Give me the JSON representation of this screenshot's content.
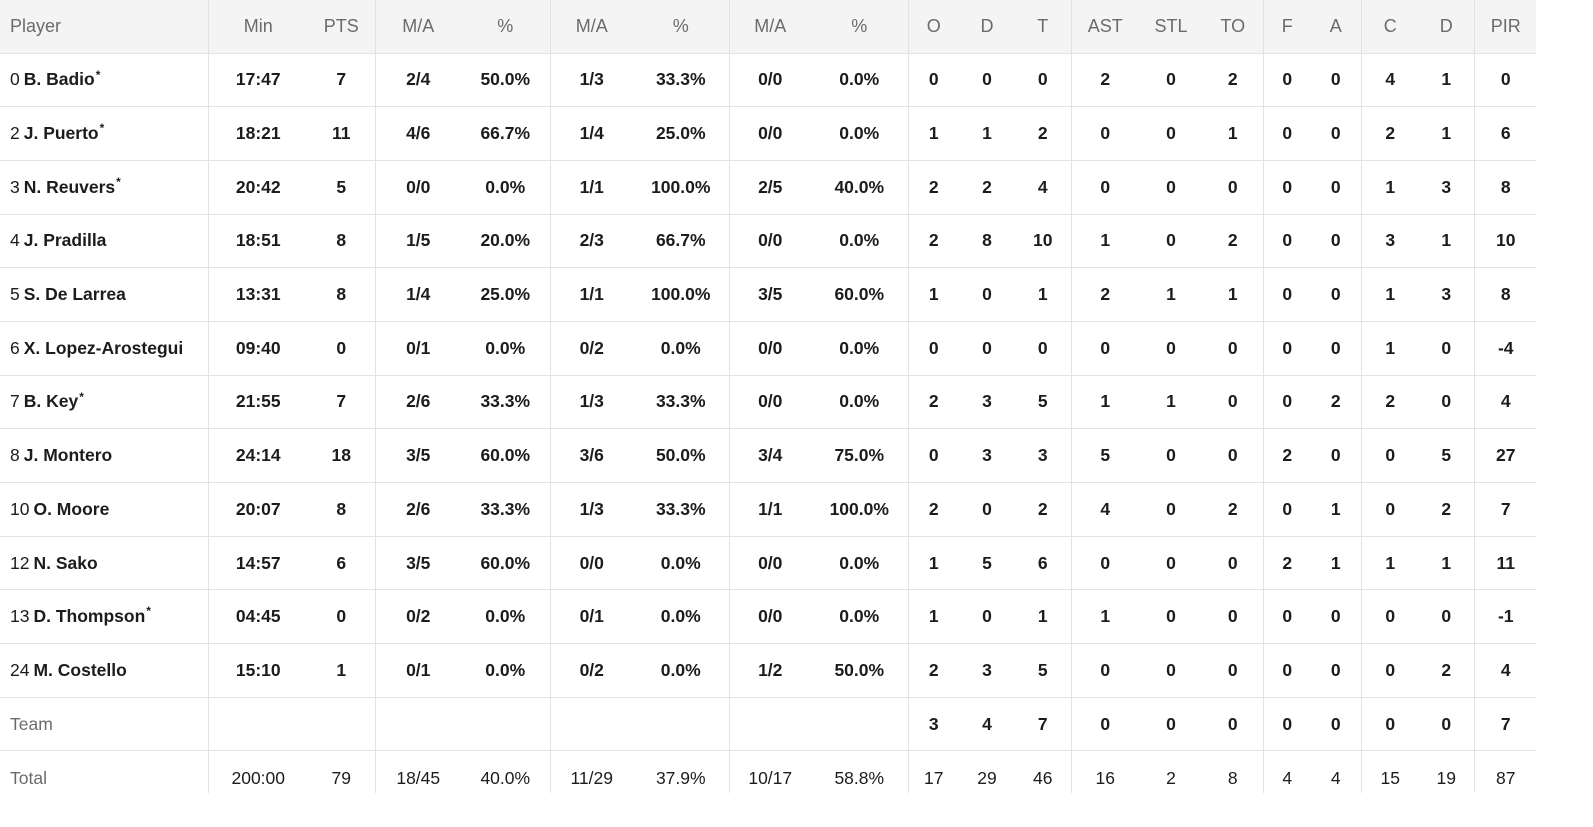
{
  "table": {
    "headers": [
      "Player",
      "Min",
      "PTS",
      "M/A",
      "%",
      "M/A",
      "%",
      "M/A",
      "%",
      "O",
      "D",
      "T",
      "AST",
      "STL",
      "TO",
      "F",
      "A",
      "C",
      "D",
      "PIR"
    ],
    "rows": [
      {
        "num": "0",
        "name": "B. Badio",
        "starter": true,
        "cells": [
          "17:47",
          "7",
          "2/4",
          "50.0%",
          "1/3",
          "33.3%",
          "0/0",
          "0.0%",
          "0",
          "0",
          "0",
          "2",
          "0",
          "2",
          "0",
          "0",
          "4",
          "1",
          "0"
        ]
      },
      {
        "num": "2",
        "name": "J. Puerto",
        "starter": true,
        "cells": [
          "18:21",
          "11",
          "4/6",
          "66.7%",
          "1/4",
          "25.0%",
          "0/0",
          "0.0%",
          "1",
          "1",
          "2",
          "0",
          "0",
          "1",
          "0",
          "0",
          "2",
          "1",
          "6"
        ]
      },
      {
        "num": "3",
        "name": "N. Reuvers",
        "starter": true,
        "cells": [
          "20:42",
          "5",
          "0/0",
          "0.0%",
          "1/1",
          "100.0%",
          "2/5",
          "40.0%",
          "2",
          "2",
          "4",
          "0",
          "0",
          "0",
          "0",
          "0",
          "1",
          "3",
          "8"
        ]
      },
      {
        "num": "4",
        "name": "J. Pradilla",
        "starter": false,
        "cells": [
          "18:51",
          "8",
          "1/5",
          "20.0%",
          "2/3",
          "66.7%",
          "0/0",
          "0.0%",
          "2",
          "8",
          "10",
          "1",
          "0",
          "2",
          "0",
          "0",
          "3",
          "1",
          "10"
        ]
      },
      {
        "num": "5",
        "name": "S. De Larrea",
        "starter": false,
        "cells": [
          "13:31",
          "8",
          "1/4",
          "25.0%",
          "1/1",
          "100.0%",
          "3/5",
          "60.0%",
          "1",
          "0",
          "1",
          "2",
          "1",
          "1",
          "0",
          "0",
          "1",
          "3",
          "8"
        ]
      },
      {
        "num": "6",
        "name": "X. Lopez-Arostegui",
        "starter": false,
        "cells": [
          "09:40",
          "0",
          "0/1",
          "0.0%",
          "0/2",
          "0.0%",
          "0/0",
          "0.0%",
          "0",
          "0",
          "0",
          "0",
          "0",
          "0",
          "0",
          "0",
          "1",
          "0",
          "-4"
        ]
      },
      {
        "num": "7",
        "name": "B. Key",
        "starter": true,
        "cells": [
          "21:55",
          "7",
          "2/6",
          "33.3%",
          "1/3",
          "33.3%",
          "0/0",
          "0.0%",
          "2",
          "3",
          "5",
          "1",
          "1",
          "0",
          "0",
          "2",
          "2",
          "0",
          "4"
        ]
      },
      {
        "num": "8",
        "name": "J. Montero",
        "starter": false,
        "cells": [
          "24:14",
          "18",
          "3/5",
          "60.0%",
          "3/6",
          "50.0%",
          "3/4",
          "75.0%",
          "0",
          "3",
          "3",
          "5",
          "0",
          "0",
          "2",
          "0",
          "0",
          "5",
          "27"
        ]
      },
      {
        "num": "10",
        "name": "O. Moore",
        "starter": false,
        "cells": [
          "20:07",
          "8",
          "2/6",
          "33.3%",
          "1/3",
          "33.3%",
          "1/1",
          "100.0%",
          "2",
          "0",
          "2",
          "4",
          "0",
          "2",
          "0",
          "1",
          "0",
          "2",
          "7"
        ]
      },
      {
        "num": "12",
        "name": "N. Sako",
        "starter": false,
        "cells": [
          "14:57",
          "6",
          "3/5",
          "60.0%",
          "0/0",
          "0.0%",
          "0/0",
          "0.0%",
          "1",
          "5",
          "6",
          "0",
          "0",
          "0",
          "2",
          "1",
          "1",
          "1",
          "11"
        ]
      },
      {
        "num": "13",
        "name": "D. Thompson",
        "starter": true,
        "cells": [
          "04:45",
          "0",
          "0/2",
          "0.0%",
          "0/1",
          "0.0%",
          "0/0",
          "0.0%",
          "1",
          "0",
          "1",
          "1",
          "0",
          "0",
          "0",
          "0",
          "0",
          "0",
          "-1"
        ]
      },
      {
        "num": "24",
        "name": "M. Costello",
        "starter": false,
        "cells": [
          "15:10",
          "1",
          "0/1",
          "0.0%",
          "0/2",
          "0.0%",
          "1/2",
          "50.0%",
          "2",
          "3",
          "5",
          "0",
          "0",
          "0",
          "0",
          "0",
          "0",
          "2",
          "4"
        ]
      }
    ],
    "team_row": {
      "label": "Team",
      "cells": [
        "",
        "",
        "",
        "",
        "",
        "",
        "",
        "",
        "3",
        "4",
        "7",
        "0",
        "0",
        "0",
        "0",
        "0",
        "0",
        "0",
        "7"
      ]
    },
    "total_row": {
      "label": "Total",
      "cells": [
        "200:00",
        "79",
        "18/45",
        "40.0%",
        "11/29",
        "37.9%",
        "10/17",
        "58.8%",
        "17",
        "29",
        "46",
        "16",
        "2",
        "8",
        "4",
        "4",
        "15",
        "19",
        "87"
      ]
    },
    "starter_mark": "*"
  },
  "colors": {
    "header_bg": "#f4f4f4",
    "header_text": "#6b6b6b",
    "row_text": "#1c1c1c",
    "divider": "#e3e3e3"
  }
}
